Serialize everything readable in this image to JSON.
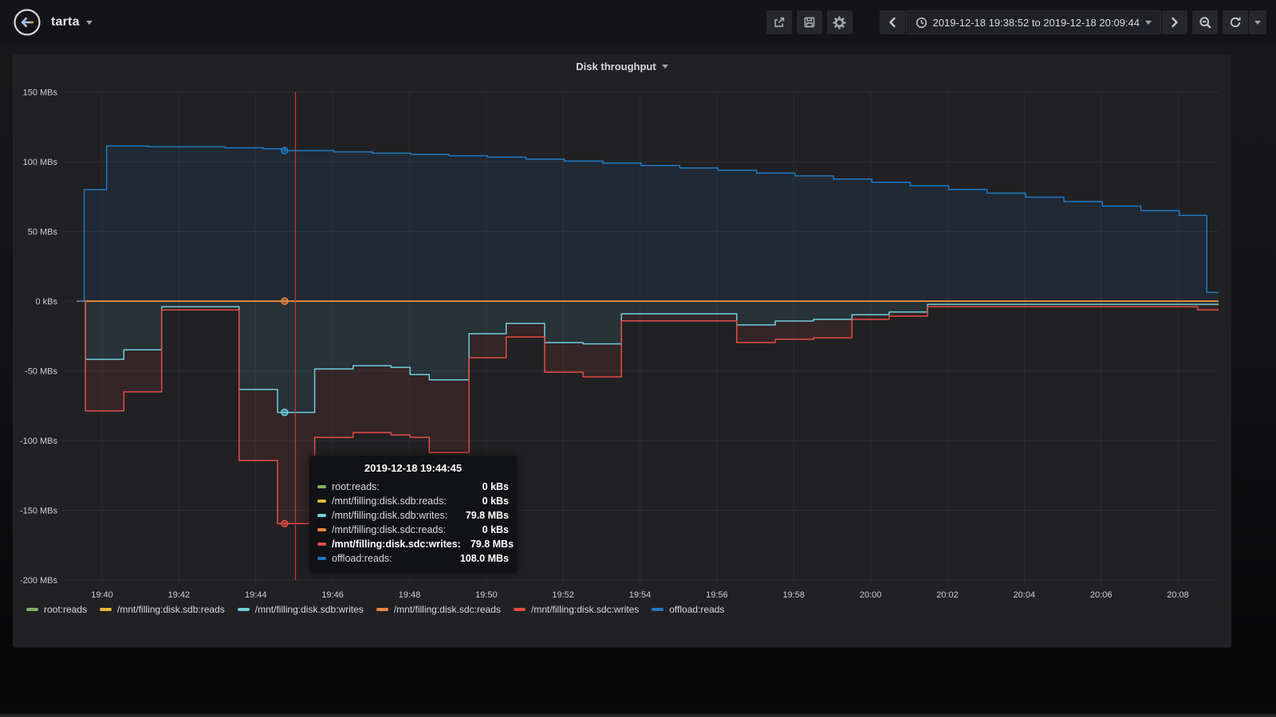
{
  "navbar": {
    "dashboard_title": "tarta",
    "time_range": "2019-12-18 19:38:52 to 2019-12-18 20:09:44"
  },
  "panel": {
    "title": "Disk throughput"
  },
  "tooltip": {
    "timestamp": "2019-12-18 19:44:45",
    "rows": [
      {
        "label": "root:reads:",
        "value": "0 kBs",
        "color": "#7eb26d",
        "bold": false
      },
      {
        "label": "/mnt/filling:disk.sdb:reads:",
        "value": "0 kBs",
        "color": "#eab839",
        "bold": false
      },
      {
        "label": "/mnt/filling:disk.sdb:writes:",
        "value": "79.8 MBs",
        "color": "#6ed0e0",
        "bold": false
      },
      {
        "label": "/mnt/filling:disk.sdc:reads:",
        "value": "0 kBs",
        "color": "#ef843c",
        "bold": false
      },
      {
        "label": "/mnt/filling:disk.sdc:writes:",
        "value": "79.8 MBs",
        "color": "#e24d42",
        "bold": true
      },
      {
        "label": "offload:reads:",
        "value": "108.0 MBs",
        "color": "#1f78c1",
        "bold": false
      }
    ]
  },
  "legend": {
    "items": [
      {
        "label": "root:reads",
        "color": "#7eb26d"
      },
      {
        "label": "/mnt/filling:disk.sdb:reads",
        "color": "#eab839"
      },
      {
        "label": "/mnt/filling:disk.sdb:writes",
        "color": "#6ed0e0"
      },
      {
        "label": "/mnt/filling:disk.sdc:reads",
        "color": "#ef843c"
      },
      {
        "label": "/mnt/filling:disk.sdc:writes",
        "color": "#e24d42"
      },
      {
        "label": "offload:reads",
        "color": "#1f78c1"
      }
    ]
  },
  "chart_data": {
    "type": "area",
    "title": "Disk throughput",
    "grid": true,
    "legend_position": "bottom",
    "y_axis": {
      "unit": "MBs",
      "range": [
        -200,
        150
      ],
      "ticks": [
        {
          "value": 150,
          "label": "150 MBs"
        },
        {
          "value": 100,
          "label": "100 MBs"
        },
        {
          "value": 50,
          "label": "50 MBs"
        },
        {
          "value": 0,
          "label": "0 kBs"
        },
        {
          "value": -50,
          "label": "-50 MBs"
        },
        {
          "value": -100,
          "label": "-100 MBs"
        },
        {
          "value": -150,
          "label": "-150 MBs"
        },
        {
          "value": -200,
          "label": "-200 MBs"
        }
      ]
    },
    "x_axis": {
      "start": "19:38:52",
      "end": "20:09:44",
      "end_s": 1852,
      "ticks": [
        {
          "t": 68,
          "label": "19:40"
        },
        {
          "t": 188,
          "label": "19:42"
        },
        {
          "t": 308,
          "label": "19:44"
        },
        {
          "t": 428,
          "label": "19:46"
        },
        {
          "t": 548,
          "label": "19:48"
        },
        {
          "t": 668,
          "label": "19:50"
        },
        {
          "t": 788,
          "label": "19:52"
        },
        {
          "t": 908,
          "label": "19:54"
        },
        {
          "t": 1028,
          "label": "19:56"
        },
        {
          "t": 1148,
          "label": "19:58"
        },
        {
          "t": 1268,
          "label": "20:00"
        },
        {
          "t": 1388,
          "label": "20:02"
        },
        {
          "t": 1508,
          "label": "20:04"
        },
        {
          "t": 1628,
          "label": "20:06"
        },
        {
          "t": 1748,
          "label": "20:08"
        }
      ]
    },
    "note": "steps are [seconds_since_19:38:52, displayed_value_MBs]; writes series are stacked on the negative axis (sdc:writes shown as sdb+sdc total)",
    "series": [
      {
        "name": "root:reads",
        "color": "#7eb26d",
        "fill": "none",
        "steps": [
          [
            0,
            0
          ],
          [
            1852,
            0
          ]
        ]
      },
      {
        "name": "/mnt/filling:disk.sdb:reads",
        "color": "#eab839",
        "fill": "none",
        "steps": [
          [
            0,
            0
          ],
          [
            1852,
            0
          ]
        ]
      },
      {
        "name": "/mnt/filling:disk.sdb:writes",
        "color": "#6ed0e0",
        "fill": "zero",
        "steps": [
          [
            0,
            0
          ],
          [
            42,
            -41.7
          ],
          [
            102,
            -34.9
          ],
          [
            161,
            -4
          ],
          [
            282,
            -63.4
          ],
          [
            342,
            -79.8
          ],
          [
            400,
            -48.6
          ],
          [
            460,
            -46.3
          ],
          [
            519,
            -47.5
          ],
          [
            549,
            -52.6
          ],
          [
            579,
            -56.4
          ],
          [
            641,
            -23.4
          ],
          [
            699,
            -16
          ],
          [
            759,
            -29.7
          ],
          [
            819,
            -30.6
          ],
          [
            879,
            -9.1
          ],
          [
            1059,
            -17.1
          ],
          [
            1119,
            -14.3
          ],
          [
            1179,
            -13.1
          ],
          [
            1239,
            -9.7
          ],
          [
            1297,
            -7.8
          ],
          [
            1357,
            -2.3
          ],
          [
            1852,
            -2.3
          ]
        ]
      },
      {
        "name": "/mnt/filling:disk.sdc:reads",
        "color": "#ef843c",
        "fill": "none",
        "steps": [
          [
            0,
            0
          ],
          [
            1852,
            0
          ]
        ]
      },
      {
        "name": "/mnt/filling:disk.sdc:writes",
        "color": "#e24d42",
        "fill": "band:2",
        "steps": [
          [
            0,
            0
          ],
          [
            42,
            -78.7
          ],
          [
            102,
            -65.1
          ],
          [
            161,
            -6.3
          ],
          [
            282,
            -114.3
          ],
          [
            342,
            -159.6
          ],
          [
            400,
            -97.7
          ],
          [
            460,
            -94.3
          ],
          [
            519,
            -96
          ],
          [
            549,
            -97.7
          ],
          [
            579,
            -108.6
          ],
          [
            641,
            -40.6
          ],
          [
            699,
            -25.7
          ],
          [
            759,
            -50.9
          ],
          [
            819,
            -54.3
          ],
          [
            879,
            -14.1
          ],
          [
            1059,
            -29.7
          ],
          [
            1119,
            -27.4
          ],
          [
            1179,
            -26.3
          ],
          [
            1239,
            -13.1
          ],
          [
            1297,
            -10.7
          ],
          [
            1357,
            -4
          ],
          [
            1779,
            -6.3
          ],
          [
            1852,
            -6.3
          ]
        ]
      },
      {
        "name": "offload:reads",
        "color": "#1f78c1",
        "fill": "zero",
        "steps": [
          [
            0,
            0
          ],
          [
            40,
            80
          ],
          [
            75,
            111.3
          ],
          [
            140,
            110.7
          ],
          [
            260,
            110
          ],
          [
            320,
            109.3
          ],
          [
            353,
            108
          ],
          [
            430,
            107.1
          ],
          [
            490,
            106.2
          ],
          [
            550,
            105.3
          ],
          [
            610,
            104.3
          ],
          [
            670,
            103.3
          ],
          [
            730,
            101.9
          ],
          [
            790,
            100.5
          ],
          [
            850,
            99
          ],
          [
            910,
            97.3
          ],
          [
            970,
            95.6
          ],
          [
            1030,
            93.8
          ],
          [
            1090,
            91.8
          ],
          [
            1150,
            89.8
          ],
          [
            1210,
            87.6
          ],
          [
            1270,
            85.3
          ],
          [
            1330,
            82.8
          ],
          [
            1390,
            80.2
          ],
          [
            1450,
            77.5
          ],
          [
            1510,
            74.6
          ],
          [
            1570,
            71.4
          ],
          [
            1630,
            68.2
          ],
          [
            1690,
            64.9
          ],
          [
            1750,
            61.5
          ],
          [
            1793,
            6.3
          ],
          [
            1852,
            6.3
          ]
        ]
      }
    ],
    "crosshair": {
      "line_t": 370,
      "point_t": 353,
      "color": "#c23b3b",
      "dot_series": [
        3,
        2,
        4,
        5
      ]
    }
  }
}
